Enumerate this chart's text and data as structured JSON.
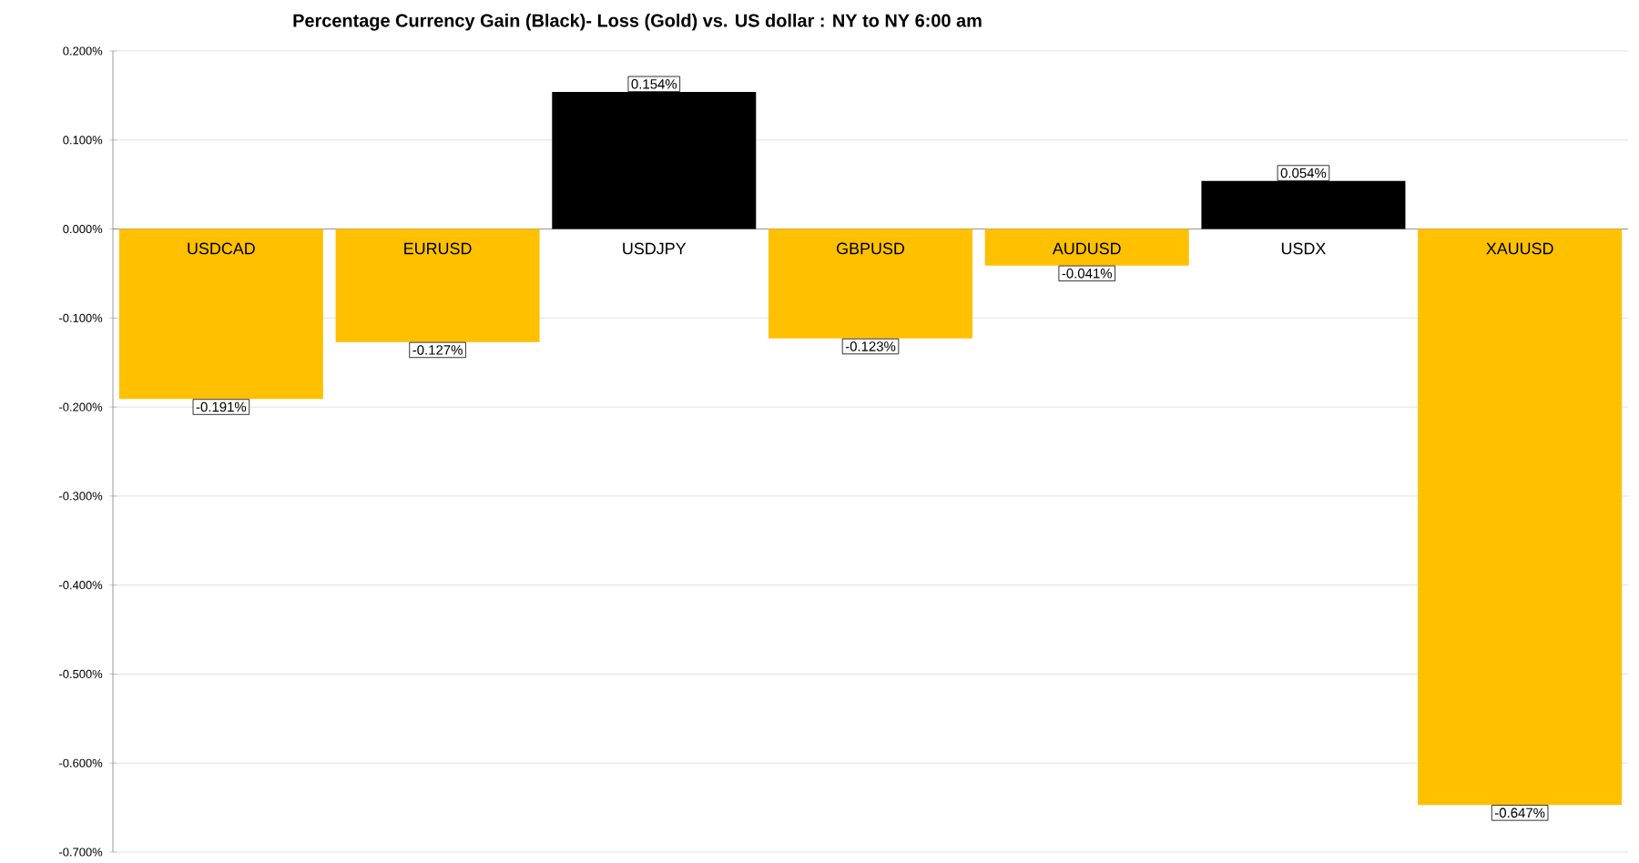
{
  "chart_data": {
    "type": "bar",
    "title": "Percentage Currency Gain (Black)- Loss (Gold) vs. US dollar : NY to NY 6:00 am",
    "categories": [
      "USDCAD",
      "EURUSD",
      "USDJPY",
      "GBPUSD",
      "AUDUSD",
      "USDX",
      "XAUUSD"
    ],
    "values": [
      -0.191,
      -0.127,
      0.154,
      -0.123,
      -0.041,
      0.054,
      -0.647
    ],
    "colors": [
      "#ffc000",
      "#ffc000",
      "#000000",
      "#ffc000",
      "#ffc000",
      "#000000",
      "#ffc000"
    ],
    "value_labels": [
      "-0.191%",
      "-0.127%",
      "0.154%",
      "-0.123%",
      "-0.041%",
      "0.054%",
      "-0.647%"
    ],
    "ylim": [
      -0.7,
      0.2
    ],
    "yticks": [
      {
        "value": 0.2,
        "label": "0.200%"
      },
      {
        "value": 0.1,
        "label": "0.100%"
      },
      {
        "value": 0,
        "label": "0.000%"
      },
      {
        "value": -0.1,
        "label": "-0.100%"
      },
      {
        "value": -0.2,
        "label": "-0.200%"
      },
      {
        "value": -0.3,
        "label": "-0.300%"
      },
      {
        "value": -0.4,
        "label": "-0.400%"
      },
      {
        "value": -0.5,
        "label": "-0.500%"
      },
      {
        "value": -0.6,
        "label": "-0.600%"
      },
      {
        "value": -0.7,
        "label": "-0.700%"
      }
    ],
    "grid": "y"
  }
}
